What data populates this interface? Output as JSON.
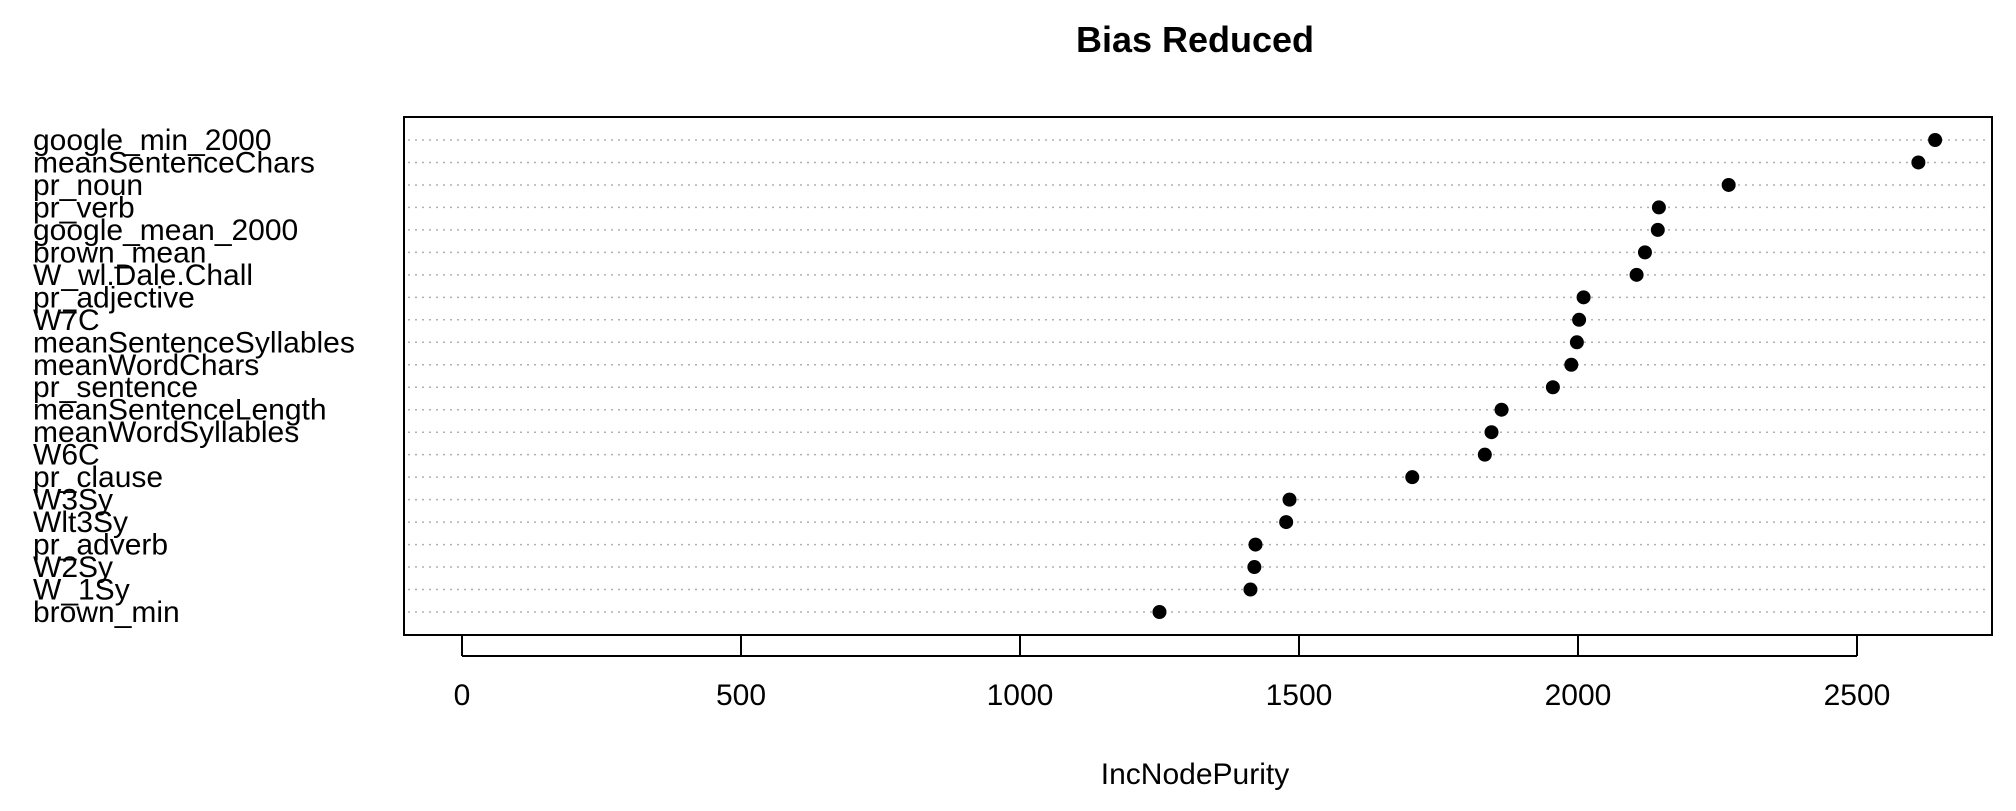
{
  "chart_data": {
    "type": "scatter",
    "title": "Bias Reduced",
    "xlabel": "IncNodePurity",
    "ylabel": "",
    "xlim": [
      -100,
      2740
    ],
    "x_ticks": [
      0,
      500,
      1000,
      1500,
      2000,
      2500
    ],
    "grid": "dotted horizontal guide lines per variable",
    "categories": [
      "google_min_2000",
      "meanSentenceChars",
      "pr_noun",
      "pr_verb",
      "google_mean_2000",
      "brown_mean",
      "W_wl.Dale.Chall",
      "pr_adjective",
      "W7C",
      "meanSentenceSyllables",
      "meanWordChars",
      "pr_sentence",
      "meanSentenceLength",
      "meanWordSyllables",
      "W6C",
      "pr_clause",
      "W3Sy",
      "Wlt3Sy",
      "pr_adverb",
      "W2Sy",
      "W_1Sy",
      "brown_min"
    ],
    "values": [
      2640,
      2610,
      2270,
      2145,
      2143,
      2120,
      2105,
      2010,
      2002,
      1998,
      1988,
      1955,
      1863,
      1845,
      1833,
      1703,
      1483,
      1477,
      1422,
      1420,
      1413,
      1250
    ]
  }
}
